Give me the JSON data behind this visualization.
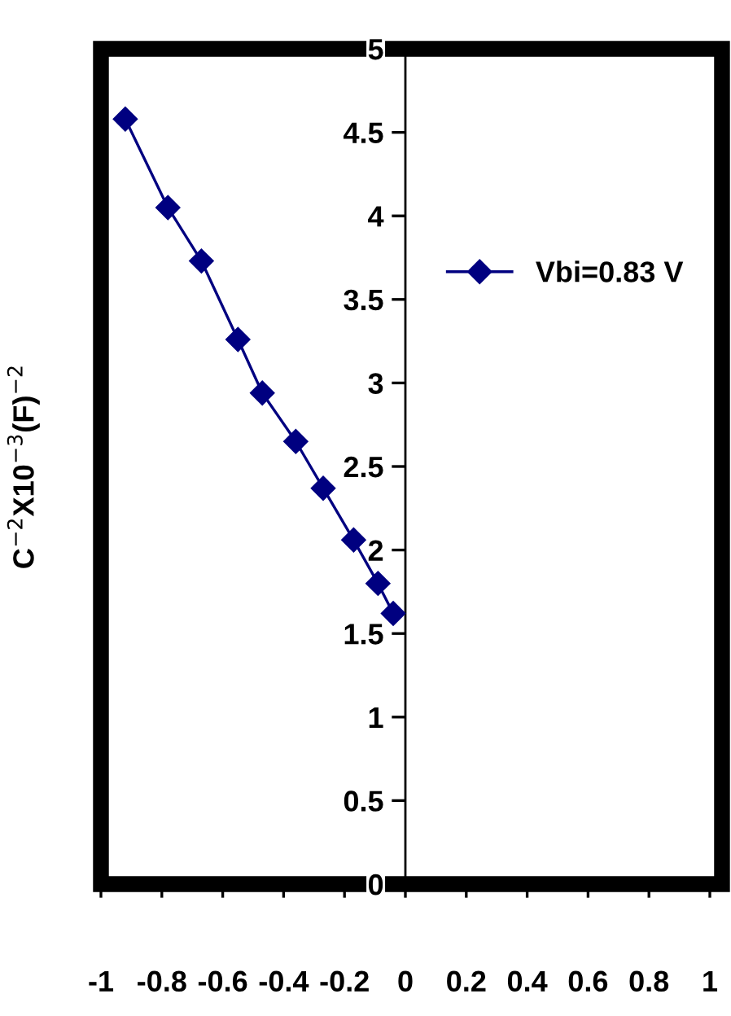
{
  "chart_data": {
    "type": "line",
    "ylabel": "C$^{−2}$X10$^{−3}$(F)$^{−2}$",
    "x": [
      -0.92,
      -0.78,
      -0.67,
      -0.55,
      -0.47,
      -0.36,
      -0.27,
      -0.17,
      -0.09,
      -0.04
    ],
    "series": [
      {
        "name": "Vbi=0.83 V",
        "color": "#000080",
        "values": [
          4.58,
          4.05,
          3.73,
          3.26,
          2.94,
          2.65,
          2.37,
          2.06,
          1.8,
          1.62
        ]
      }
    ],
    "xlim": [
      -1,
      1
    ],
    "xticks": [
      -1,
      -0.8,
      -0.6,
      -0.4,
      -0.2,
      0,
      0.2,
      0.4,
      0.6,
      0.8,
      1
    ],
    "ylim": [
      0,
      5
    ],
    "yticks": [
      0,
      0.5,
      1,
      1.5,
      2,
      2.5,
      3,
      3.5,
      4,
      4.5,
      5
    ],
    "marker": "diamond",
    "line_style": "solid",
    "grid": false,
    "legend": "right"
  }
}
